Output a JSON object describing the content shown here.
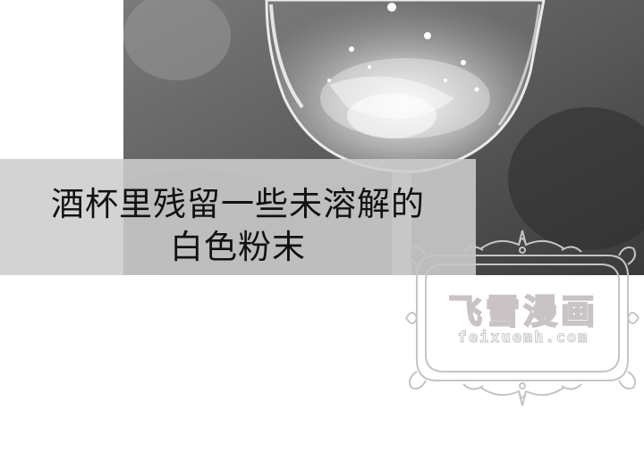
{
  "caption": {
    "line1": "酒杯里残留一些未溶解的",
    "line2": "白色粉末"
  },
  "watermark": {
    "title": "飞雪漫画",
    "url": "feixuemh.com"
  },
  "colors": {
    "caption_bg": "#cdcdcd",
    "caption_text": "#111111",
    "watermark_outline": "#c9c3c6"
  }
}
